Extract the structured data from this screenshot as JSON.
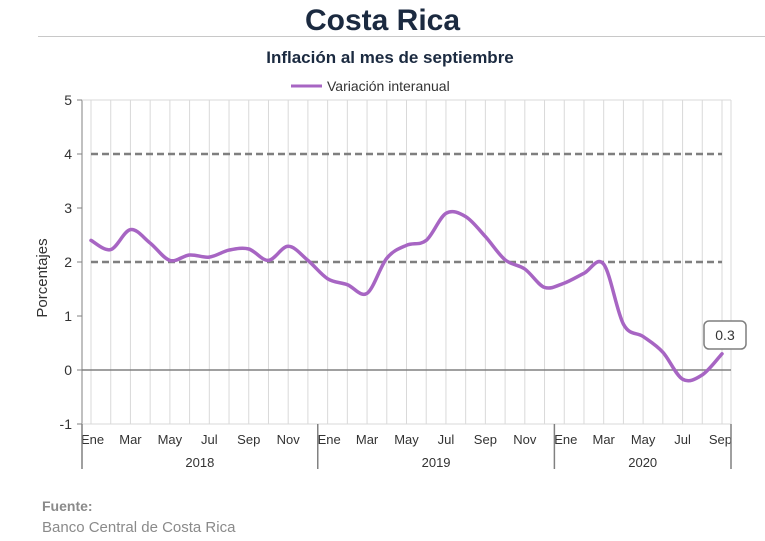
{
  "header": {
    "title": "Costa Rica"
  },
  "source": {
    "label": "Fuente:",
    "value": "Banco Central de Costa Rica"
  },
  "colors": {
    "series": "#a765c3",
    "reference": "#7f7f7f",
    "grid": "#d9d9d9",
    "axis": "#808080"
  },
  "chart_data": {
    "type": "line",
    "title": "Inflación al mes de septiembre",
    "ylabel": "Porcentajes",
    "ylim": [
      -1,
      5
    ],
    "yticks": [
      -1,
      0,
      1,
      2,
      3,
      4,
      5
    ],
    "legend": "top",
    "grid": true,
    "month_labels": [
      "Ene",
      "Mar",
      "May",
      "Jul",
      "Sep",
      "Nov",
      "Ene",
      "Mar",
      "May",
      "Jul",
      "Sep",
      "Nov",
      "Ene",
      "Mar",
      "May",
      "Jul",
      "Sep"
    ],
    "years": [
      "2018",
      "2019",
      "2020"
    ],
    "reference_lines": [
      2,
      4
    ],
    "series": [
      {
        "name": "Variación interanual",
        "x": [
          "2018-01",
          "2018-02",
          "2018-03",
          "2018-04",
          "2018-05",
          "2018-06",
          "2018-07",
          "2018-08",
          "2018-09",
          "2018-10",
          "2018-11",
          "2018-12",
          "2019-01",
          "2019-02",
          "2019-03",
          "2019-04",
          "2019-05",
          "2019-06",
          "2019-07",
          "2019-08",
          "2019-09",
          "2019-10",
          "2019-11",
          "2019-12",
          "2020-01",
          "2020-02",
          "2020-03",
          "2020-04",
          "2020-05",
          "2020-06",
          "2020-07",
          "2020-08",
          "2020-09"
        ],
        "values": [
          2.4,
          2.23,
          2.6,
          2.35,
          2.03,
          2.13,
          2.09,
          2.22,
          2.24,
          2.03,
          2.29,
          2.03,
          1.69,
          1.58,
          1.42,
          2.07,
          2.31,
          2.4,
          2.9,
          2.84,
          2.47,
          2.04,
          1.87,
          1.53,
          1.61,
          1.79,
          1.96,
          0.85,
          0.62,
          0.33,
          -0.17,
          -0.09,
          0.3
        ],
        "last_label": "0.3"
      }
    ]
  }
}
